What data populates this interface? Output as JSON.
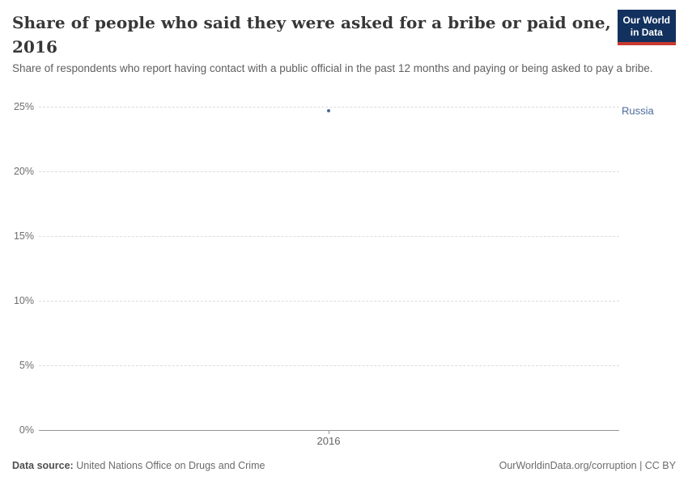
{
  "header": {
    "title_lines": [
      "Share of people who said they were asked for a bribe or paid one,",
      "2016"
    ],
    "subtitle": "Share of respondents who report having contact with a public official in the past 12 months and paying or being asked to pay a bribe.",
    "logo": {
      "line1": "Our World",
      "line2": "in Data",
      "bg_color": "#12315f",
      "accent_color": "#c7392f"
    }
  },
  "chart_data": {
    "type": "scatter",
    "title": "Share of people who said they were asked for a bribe or paid one, 2016",
    "subtitle": "Share of respondents who report having contact with a public official in the past 12 months and paying or being asked to pay a bribe.",
    "x": [
      2016
    ],
    "series": [
      {
        "name": "Russia",
        "values": [
          24.7
        ],
        "color": "#4c6a9c"
      }
    ],
    "xlabel": "",
    "ylabel": "",
    "ylim": [
      0,
      25
    ],
    "ytick_labels_top_to_bottom": [
      "25%",
      "20%",
      "15%",
      "10%",
      "5%",
      "0%"
    ],
    "xtick_labels": [
      "2016"
    ],
    "grid": "horizontal-dashed",
    "gridline_color": "#dcdcdc",
    "axis_line_color": "#949494",
    "tick_label_color": "#6e6e6e",
    "legend_position": "point-label-right"
  },
  "footer": {
    "source_label": "Data source:",
    "source_value": "United Nations Office on Drugs and Crime",
    "credit": "OurWorldinData.org/corruption | CC BY"
  }
}
